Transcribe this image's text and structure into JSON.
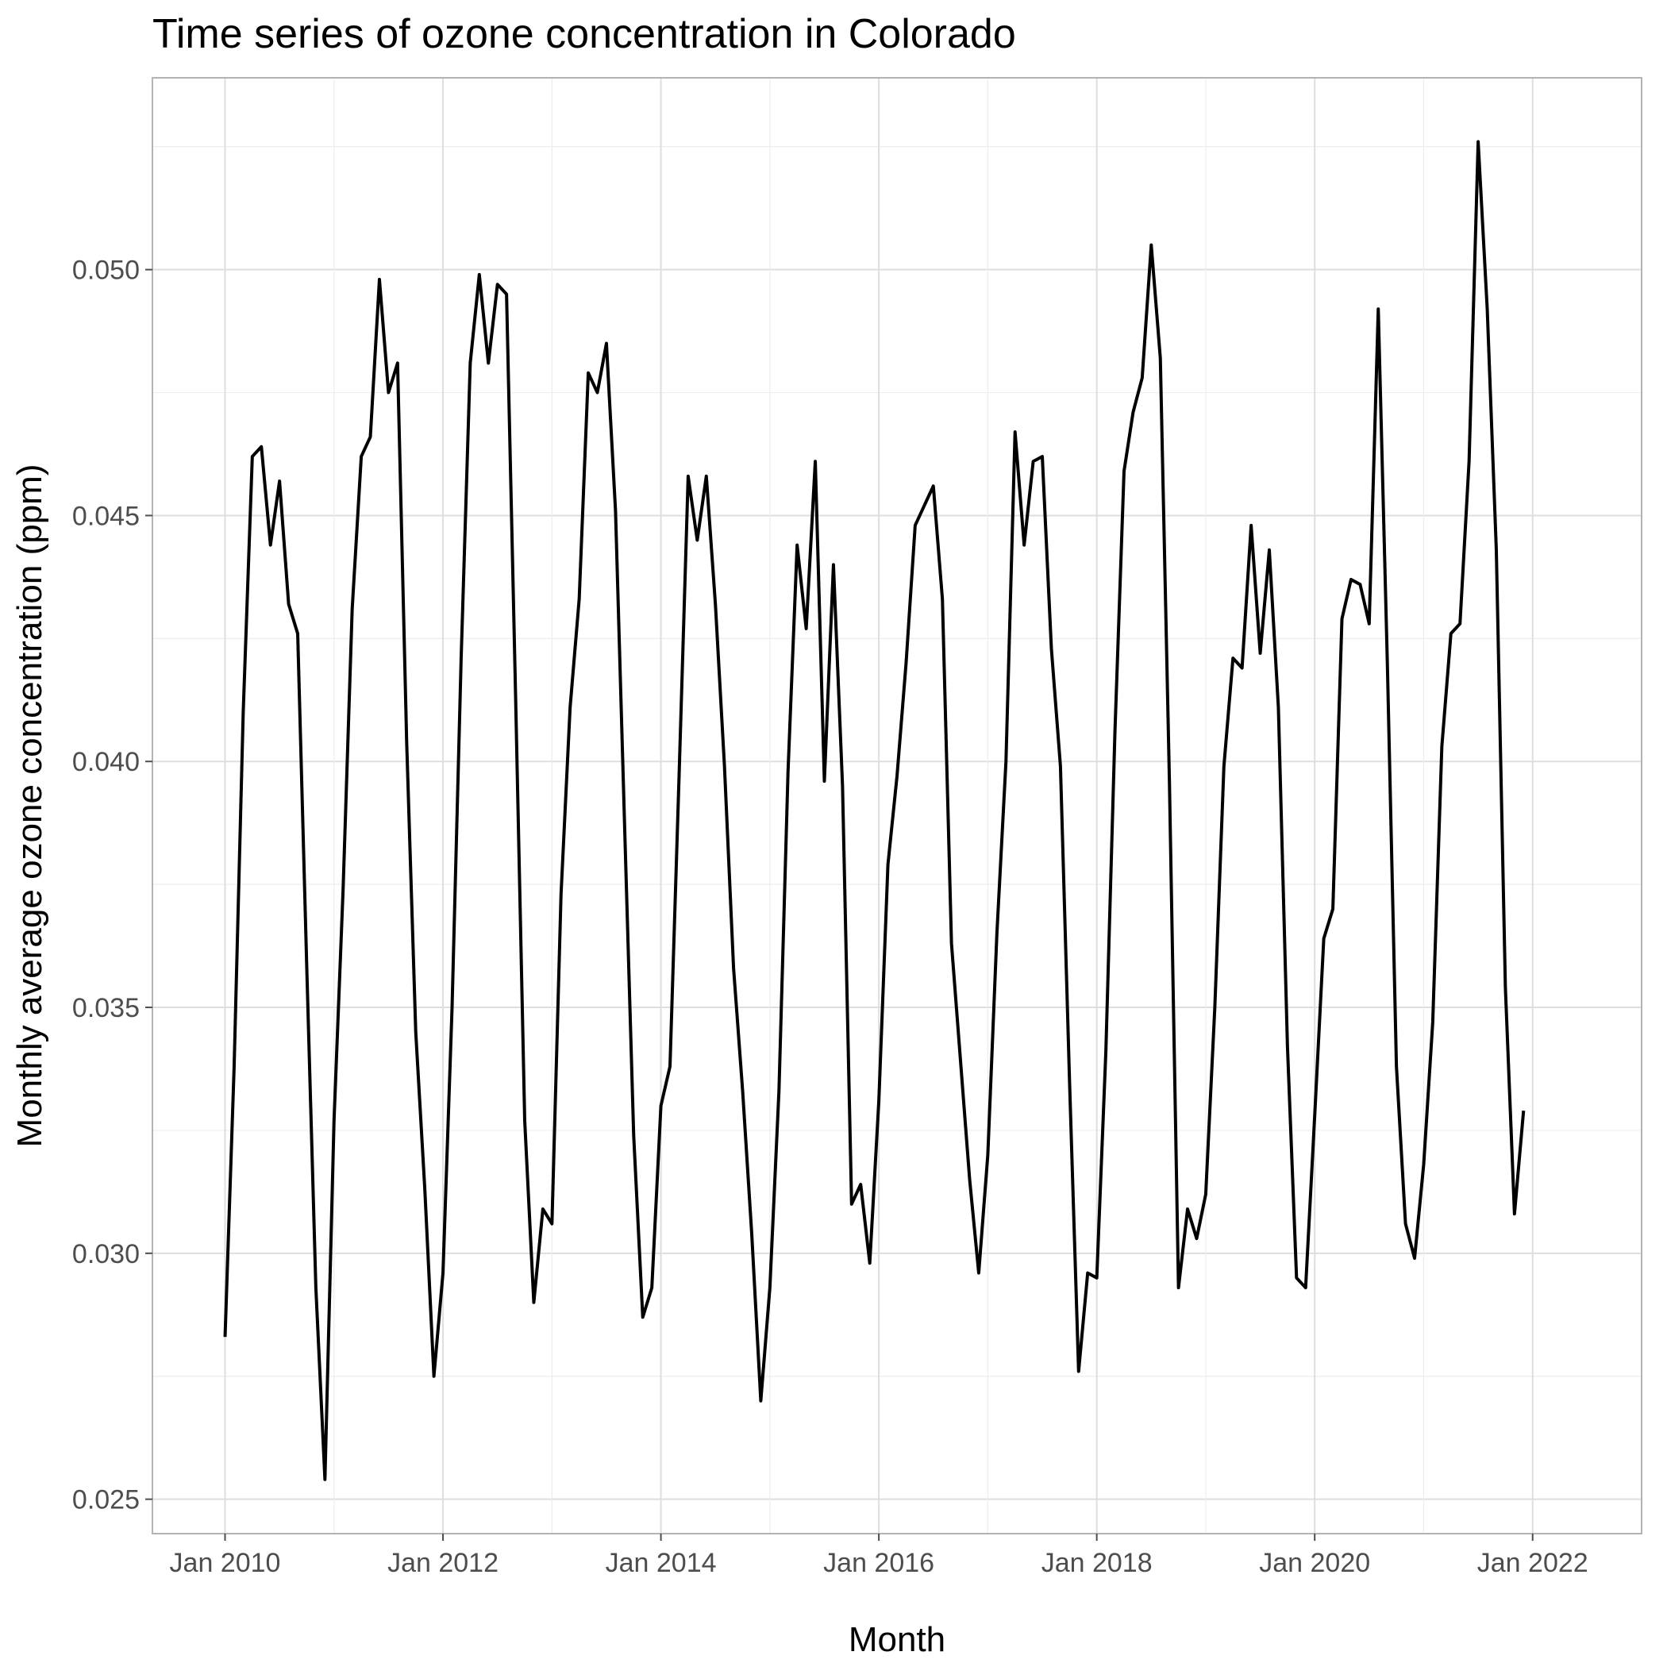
{
  "chart_data": {
    "type": "line",
    "title": "Time series of ozone concentration in Colorado",
    "xlabel": "Month",
    "ylabel": "Monthly average ozone concentration (ppm)",
    "x_tick_labels": [
      "Jan 2010",
      "Jan 2012",
      "Jan 2014",
      "Jan 2016",
      "Jan 2018",
      "Jan 2020",
      "Jan 2022"
    ],
    "y_tick_labels": [
      "0.025",
      "0.030",
      "0.035",
      "0.040",
      "0.045",
      "0.050"
    ],
    "y_ticks": [
      0.025,
      0.03,
      0.035,
      0.04,
      0.045,
      0.05
    ],
    "ylim": [
      0.0243,
      0.0539
    ],
    "xlim": [
      "2009-05",
      "2023-01"
    ],
    "grid": true,
    "legend": "none",
    "line_color": "#000000",
    "x": [
      "2010-01",
      "2010-02",
      "2010-03",
      "2010-04",
      "2010-05",
      "2010-06",
      "2010-07",
      "2010-08",
      "2010-09",
      "2010-10",
      "2010-11",
      "2010-12",
      "2011-01",
      "2011-02",
      "2011-03",
      "2011-04",
      "2011-05",
      "2011-06",
      "2011-07",
      "2011-08",
      "2011-09",
      "2011-10",
      "2011-11",
      "2011-12",
      "2012-01",
      "2012-02",
      "2012-03",
      "2012-04",
      "2012-05",
      "2012-06",
      "2012-07",
      "2012-08",
      "2012-09",
      "2012-10",
      "2012-11",
      "2012-12",
      "2013-01",
      "2013-02",
      "2013-03",
      "2013-04",
      "2013-05",
      "2013-06",
      "2013-07",
      "2013-08",
      "2013-09",
      "2013-10",
      "2013-11",
      "2013-12",
      "2014-01",
      "2014-02",
      "2014-03",
      "2014-04",
      "2014-05",
      "2014-06",
      "2014-07",
      "2014-08",
      "2014-09",
      "2014-10",
      "2014-11",
      "2014-12",
      "2015-01",
      "2015-02",
      "2015-03",
      "2015-04",
      "2015-05",
      "2015-06",
      "2015-07",
      "2015-08",
      "2015-09",
      "2015-10",
      "2015-11",
      "2015-12",
      "2016-01",
      "2016-02",
      "2016-03",
      "2016-04",
      "2016-05",
      "2016-06",
      "2016-07",
      "2016-08",
      "2016-09",
      "2016-10",
      "2016-11",
      "2016-12",
      "2017-01",
      "2017-02",
      "2017-03",
      "2017-04",
      "2017-05",
      "2017-06",
      "2017-07",
      "2017-08",
      "2017-09",
      "2017-10",
      "2017-11",
      "2017-12",
      "2018-01",
      "2018-02",
      "2018-03",
      "2018-04",
      "2018-05",
      "2018-06",
      "2018-07",
      "2018-08",
      "2018-09",
      "2018-10",
      "2018-11",
      "2018-12",
      "2019-01",
      "2019-02",
      "2019-03",
      "2019-04",
      "2019-05",
      "2019-06",
      "2019-07",
      "2019-08",
      "2019-09",
      "2019-10",
      "2019-11",
      "2019-12",
      "2020-01",
      "2020-02",
      "2020-03",
      "2020-04",
      "2020-05",
      "2020-06",
      "2020-07",
      "2020-08",
      "2020-09",
      "2020-10",
      "2020-11",
      "2020-12",
      "2021-01",
      "2021-02",
      "2021-03",
      "2021-04",
      "2021-05",
      "2021-06",
      "2021-07",
      "2021-08",
      "2021-09",
      "2021-10",
      "2021-11",
      "2021-12"
    ],
    "series": [
      {
        "values": [
          0.0283,
          0.0338,
          0.041,
          0.0462,
          0.0464,
          0.0444,
          0.0457,
          0.0432,
          0.0426,
          0.0358,
          0.0293,
          0.0254,
          0.0327,
          0.0374,
          0.0431,
          0.0462,
          0.0466,
          0.0498,
          0.0475,
          0.0481,
          0.0404,
          0.0345,
          0.0313,
          0.0275,
          0.0296,
          0.035,
          0.0421,
          0.0481,
          0.0499,
          0.0481,
          0.0497,
          0.0495,
          0.0413,
          0.0327,
          0.029,
          0.0309,
          0.0306,
          0.0373,
          0.0411,
          0.0433,
          0.0479,
          0.0475,
          0.0485,
          0.0451,
          0.0387,
          0.0324,
          0.0287,
          0.0293,
          0.033,
          0.0338,
          0.0397,
          0.0458,
          0.0445,
          0.0458,
          0.0432,
          0.0399,
          0.0358,
          0.0333,
          0.0304,
          0.027,
          0.0293,
          0.0333,
          0.0398,
          0.0444,
          0.0427,
          0.0461,
          0.0396,
          0.044,
          0.0395,
          0.031,
          0.0314,
          0.0298,
          0.0331,
          0.0379,
          0.0397,
          0.042,
          0.0448,
          0.0452,
          0.0456,
          0.0433,
          0.0363,
          0.0339,
          0.0315,
          0.0296,
          0.032,
          0.0365,
          0.04,
          0.0467,
          0.0444,
          0.0461,
          0.0462,
          0.0423,
          0.0399,
          0.0335,
          0.0276,
          0.0296,
          0.0295,
          0.0341,
          0.0406,
          0.0459,
          0.0471,
          0.0478,
          0.0505,
          0.0482,
          0.0396,
          0.0293,
          0.0309,
          0.0303,
          0.0312,
          0.035,
          0.0399,
          0.0421,
          0.0419,
          0.0448,
          0.0422,
          0.0443,
          0.0411,
          0.0342,
          0.0295,
          0.0293,
          0.0328,
          0.0364,
          0.037,
          0.0429,
          0.0437,
          0.0436,
          0.0428,
          0.0492,
          0.042,
          0.0338,
          0.0306,
          0.0299,
          0.0318,
          0.0347,
          0.0403,
          0.0426,
          0.0428,
          0.0461,
          0.0526,
          0.0492,
          0.0443,
          0.0354,
          0.0308,
          0.0329
        ]
      }
    ]
  }
}
